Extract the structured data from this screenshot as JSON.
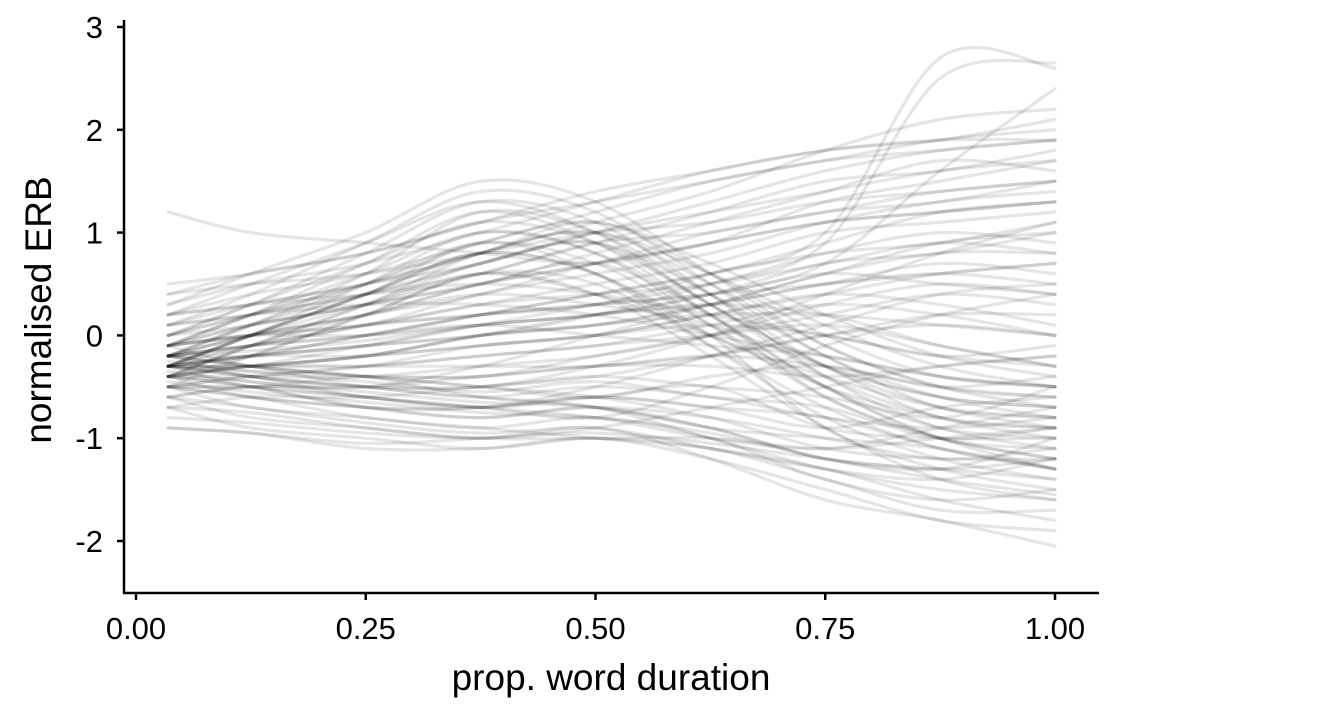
{
  "chart_data": {
    "type": "line",
    "title": "",
    "xlabel": "prop. word duration",
    "ylabel": "normalised ERB",
    "xlim": [
      0.0,
      1.0
    ],
    "ylim": [
      -2.5,
      3.0
    ],
    "x_ticks": [
      0.0,
      0.25,
      0.5,
      0.75,
      1.0
    ],
    "x_tick_labels": [
      "0.00",
      "0.25",
      "0.50",
      "0.75",
      "1.00"
    ],
    "y_ticks": [
      -2,
      -1,
      0,
      1,
      2,
      3
    ],
    "y_tick_labels": [
      "-2",
      "-1",
      "0",
      "1",
      "2",
      "3"
    ],
    "grid": false,
    "legend": "none",
    "line_color": "#000000",
    "x": [
      0.035,
      0.125,
      0.25,
      0.375,
      0.5,
      0.625,
      0.75,
      0.875,
      1.0
    ],
    "series": [
      {
        "values": [
          -0.3,
          -0.4,
          -0.6,
          -0.7,
          -0.6,
          -0.5,
          -0.9,
          -1.0,
          -1.0
        ]
      },
      {
        "values": [
          -0.4,
          -0.5,
          -0.7,
          -0.8,
          -0.7,
          -0.9,
          -1.2,
          -1.3,
          -1.4
        ]
      },
      {
        "values": [
          -0.2,
          -0.3,
          -0.5,
          -0.6,
          -0.7,
          -1.0,
          -1.3,
          -1.5,
          -1.6
        ]
      },
      {
        "values": [
          -0.5,
          -0.6,
          -0.8,
          -0.9,
          -1.0,
          -1.1,
          -1.3,
          -1.6,
          -1.8
        ]
      },
      {
        "values": [
          -0.6,
          -0.8,
          -0.9,
          -1.0,
          -0.9,
          -1.2,
          -1.6,
          -1.8,
          -2.05
        ]
      },
      {
        "values": [
          -0.3,
          -0.4,
          -0.5,
          -0.6,
          -0.5,
          -0.6,
          -0.8,
          -0.9,
          -0.8
        ]
      },
      {
        "values": [
          -0.2,
          -0.3,
          -0.4,
          -0.5,
          -0.6,
          -0.8,
          -1.1,
          -1.2,
          -1.2
        ]
      },
      {
        "values": [
          -0.4,
          -0.6,
          -0.7,
          -0.8,
          -0.7,
          -0.8,
          -1.0,
          -1.2,
          -1.1
        ]
      },
      {
        "values": [
          -0.1,
          -0.3,
          -0.4,
          -0.6,
          -0.7,
          -0.9,
          -1.2,
          -1.3,
          -1.0
        ]
      },
      {
        "values": [
          -0.5,
          -0.7,
          -0.8,
          -0.9,
          -0.8,
          -1.0,
          -1.4,
          -1.6,
          -1.5
        ]
      },
      {
        "values": [
          -0.7,
          -0.9,
          -1.0,
          -1.1,
          -1.0,
          -1.1,
          -1.4,
          -1.7,
          -1.7
        ]
      },
      {
        "values": [
          -0.9,
          -0.95,
          -1.1,
          -1.1,
          -1.0,
          -1.2,
          -1.5,
          -1.8,
          -1.9
        ]
      },
      {
        "values": [
          -0.3,
          -0.5,
          -0.6,
          -0.7,
          -0.6,
          -0.7,
          -0.9,
          -0.7,
          -0.6
        ]
      },
      {
        "values": [
          -0.2,
          -0.4,
          -0.5,
          -0.5,
          -0.4,
          -0.5,
          -0.6,
          -0.8,
          -0.5
        ]
      },
      {
        "values": [
          -0.5,
          -0.6,
          -0.7,
          -0.7,
          -0.6,
          -0.7,
          -0.8,
          -1.1,
          -1.3
        ]
      },
      {
        "values": [
          -0.3,
          -0.35,
          -0.4,
          -0.5,
          -0.6,
          -0.4,
          -0.3,
          -0.5,
          -0.4
        ]
      },
      {
        "values": [
          -0.4,
          -0.45,
          -0.6,
          -0.7,
          -0.8,
          -1.0,
          -1.1,
          -0.9,
          -0.7
        ]
      },
      {
        "values": [
          -0.6,
          -0.7,
          -0.85,
          -0.95,
          -0.9,
          -1.1,
          -1.3,
          -1.4,
          -1.2
        ]
      },
      {
        "values": [
          -0.2,
          -0.3,
          -0.4,
          -0.4,
          -0.3,
          -0.3,
          -0.4,
          -0.3,
          -0.2
        ]
      },
      {
        "values": [
          -0.35,
          -0.45,
          -0.55,
          -0.65,
          -0.7,
          -0.9,
          -1.0,
          -1.1,
          -1.3
        ]
      },
      {
        "values": [
          -0.45,
          -0.55,
          -0.65,
          -0.75,
          -0.8,
          -0.95,
          -1.2,
          -1.4,
          -1.55
        ]
      },
      {
        "values": [
          -0.25,
          -0.35,
          -0.45,
          -0.55,
          -0.45,
          -0.6,
          -0.7,
          -1.0,
          -0.9
        ]
      },
      {
        "values": [
          -0.3,
          -0.2,
          0.0,
          0.2,
          0.4,
          0.6,
          0.9,
          1.2,
          1.3
        ]
      },
      {
        "values": [
          -0.2,
          0.0,
          0.2,
          0.5,
          0.7,
          1.0,
          1.2,
          1.4,
          1.5
        ]
      },
      {
        "values": [
          -0.1,
          0.1,
          0.3,
          0.6,
          0.9,
          1.2,
          1.5,
          1.6,
          1.8
        ]
      },
      {
        "values": [
          0.0,
          0.2,
          0.4,
          0.7,
          1.0,
          1.3,
          1.6,
          1.8,
          1.9
        ]
      },
      {
        "values": [
          0.2,
          0.4,
          0.6,
          0.9,
          1.2,
          1.5,
          1.7,
          1.9,
          2.0
        ]
      },
      {
        "values": [
          -0.3,
          -0.1,
          0.1,
          0.3,
          0.5,
          0.7,
          1.0,
          1.1,
          1.2
        ]
      },
      {
        "values": [
          -0.4,
          -0.3,
          -0.1,
          0.1,
          0.2,
          0.4,
          0.7,
          0.8,
          1.0
        ]
      },
      {
        "values": [
          0.1,
          0.3,
          0.5,
          0.8,
          1.1,
          1.4,
          1.8,
          2.1,
          2.2
        ]
      },
      {
        "values": [
          -0.2,
          -0.1,
          0.1,
          0.4,
          0.6,
          0.8,
          1.1,
          1.3,
          1.4
        ]
      },
      {
        "values": [
          -0.1,
          0.0,
          0.2,
          0.4,
          0.7,
          0.9,
          1.3,
          1.5,
          1.7
        ]
      },
      {
        "values": [
          0.3,
          0.5,
          0.7,
          1.0,
          1.3,
          1.6,
          1.8,
          1.9,
          2.1
        ]
      },
      {
        "values": [
          -0.5,
          -0.4,
          -0.3,
          -0.1,
          0.0,
          0.2,
          0.4,
          0.6,
          0.7
        ]
      },
      {
        "values": [
          0.0,
          0.1,
          0.3,
          0.5,
          0.8,
          1.1,
          1.4,
          1.7,
          1.6
        ]
      },
      {
        "values": [
          -0.3,
          -0.2,
          -0.1,
          0.1,
          0.3,
          0.5,
          0.8,
          1.0,
          0.9
        ]
      },
      {
        "values": [
          -0.2,
          -0.1,
          0.0,
          0.2,
          0.4,
          0.6,
          0.8,
          0.9,
          1.1
        ]
      },
      {
        "values": [
          0.4,
          0.6,
          0.8,
          1.1,
          1.4,
          1.6,
          1.8,
          1.9,
          1.9
        ]
      },
      {
        "values": [
          -0.1,
          0.1,
          0.3,
          0.5,
          0.7,
          0.9,
          1.1,
          1.2,
          1.3
        ]
      },
      {
        "values": [
          -0.4,
          -0.3,
          -0.2,
          0.0,
          0.2,
          0.3,
          0.5,
          0.6,
          0.5
        ]
      },
      {
        "values": [
          0.2,
          0.3,
          0.5,
          0.7,
          1.0,
          1.2,
          1.4,
          1.6,
          1.7
        ]
      },
      {
        "values": [
          0.1,
          0.2,
          0.4,
          0.6,
          0.9,
          1.0,
          1.2,
          1.3,
          1.5
        ]
      },
      {
        "values": [
          -0.3,
          -0.3,
          -0.2,
          0.0,
          0.1,
          0.3,
          0.6,
          0.8,
          0.8
        ]
      },
      {
        "values": [
          -0.2,
          -0.15,
          -0.05,
          0.1,
          0.2,
          0.4,
          0.7,
          1.6,
          2.4
        ]
      },
      {
        "values": [
          -0.3,
          -0.2,
          -0.1,
          0.0,
          0.2,
          0.5,
          0.9,
          2.5,
          2.65
        ]
      },
      {
        "values": [
          -0.1,
          0.0,
          0.1,
          0.2,
          0.3,
          0.6,
          1.0,
          2.7,
          2.6
        ]
      },
      {
        "values": [
          -0.3,
          0.0,
          0.4,
          0.8,
          0.6,
          0.0,
          -0.4,
          -0.7,
          -0.8
        ]
      },
      {
        "values": [
          -0.2,
          0.1,
          0.5,
          0.9,
          0.7,
          0.1,
          -0.5,
          -0.9,
          -1.0
        ]
      },
      {
        "values": [
          -0.4,
          -0.1,
          0.3,
          0.7,
          0.9,
          0.3,
          -0.3,
          -0.6,
          -0.7
        ]
      },
      {
        "values": [
          -0.1,
          0.2,
          0.6,
          1.0,
          0.8,
          0.2,
          -0.6,
          -1.0,
          -1.2
        ]
      },
      {
        "values": [
          0.0,
          0.3,
          0.7,
          1.1,
          0.9,
          0.3,
          -0.4,
          -0.8,
          -1.0
        ]
      },
      {
        "values": [
          -0.3,
          0.0,
          0.4,
          0.8,
          1.0,
          0.5,
          -0.1,
          -0.5,
          -0.6
        ]
      },
      {
        "values": [
          -0.5,
          -0.2,
          0.2,
          0.6,
          0.5,
          -0.1,
          -0.7,
          -1.1,
          -1.3
        ]
      },
      {
        "values": [
          -0.2,
          0.1,
          0.6,
          1.2,
          1.0,
          0.4,
          -0.3,
          -0.7,
          -0.9
        ]
      },
      {
        "values": [
          0.1,
          0.4,
          0.9,
          1.4,
          1.2,
          0.5,
          -0.2,
          -0.6,
          -0.8
        ]
      },
      {
        "values": [
          -0.4,
          -0.1,
          0.2,
          0.5,
          0.7,
          0.2,
          -0.5,
          -1.0,
          -1.1
        ]
      },
      {
        "values": [
          -0.3,
          0.0,
          0.4,
          0.9,
          0.6,
          -0.1,
          -0.8,
          -1.2,
          -1.4
        ]
      },
      {
        "values": [
          -0.1,
          0.2,
          0.5,
          0.8,
          1.1,
          0.6,
          0.0,
          -0.4,
          -0.5
        ]
      },
      {
        "values": [
          -0.2,
          0.0,
          0.3,
          0.6,
          0.4,
          0.0,
          -0.5,
          -0.8,
          -0.9
        ]
      },
      {
        "values": [
          0.0,
          0.3,
          0.8,
          1.3,
          1.1,
          0.4,
          -0.4,
          -0.9,
          -1.1
        ]
      },
      {
        "values": [
          -0.3,
          0.0,
          0.5,
          1.0,
          0.8,
          0.1,
          -0.6,
          -1.0,
          -1.2
        ]
      },
      {
        "values": [
          0.2,
          0.5,
          0.9,
          1.3,
          1.0,
          0.3,
          -0.3,
          -0.8,
          -0.9
        ]
      },
      {
        "values": [
          -0.4,
          -0.1,
          0.3,
          0.8,
          1.0,
          0.6,
          0.1,
          -0.3,
          -0.5
        ]
      },
      {
        "values": [
          -0.3,
          0.0,
          0.4,
          0.8,
          0.6,
          0.0,
          -0.9,
          -1.3,
          -1.5
        ]
      },
      {
        "values": [
          -0.1,
          0.2,
          0.7,
          1.2,
          0.9,
          0.2,
          -0.5,
          -1.0,
          -1.3
        ]
      },
      {
        "values": [
          0.3,
          0.6,
          1.0,
          1.5,
          1.3,
          0.6,
          -0.1,
          -0.5,
          -0.7
        ]
      },
      {
        "values": [
          -0.2,
          0.1,
          0.4,
          0.7,
          0.9,
          0.4,
          -0.2,
          -0.7,
          -0.8
        ]
      },
      {
        "values": [
          -0.4,
          -0.2,
          0.2,
          0.6,
          0.4,
          -0.2,
          -0.9,
          -1.4,
          -1.6
        ]
      },
      {
        "values": [
          0.0,
          0.2,
          0.5,
          0.9,
          1.1,
          0.7,
          0.2,
          -0.2,
          -0.4
        ]
      },
      {
        "values": [
          -0.2,
          0.0,
          0.2,
          0.4,
          0.3,
          0.1,
          -0.3,
          -0.6,
          -0.7
        ]
      },
      {
        "values": [
          -0.3,
          -0.2,
          0.0,
          0.2,
          0.3,
          0.4,
          0.5,
          0.6,
          0.7
        ]
      },
      {
        "values": [
          -0.2,
          -0.1,
          0.1,
          0.2,
          0.3,
          0.4,
          0.6,
          0.5,
          0.4
        ]
      },
      {
        "values": [
          -0.4,
          -0.3,
          -0.2,
          0.0,
          0.1,
          0.2,
          0.2,
          0.1,
          0.0
        ]
      },
      {
        "values": [
          -0.1,
          0.0,
          0.1,
          0.3,
          0.4,
          0.5,
          0.7,
          0.9,
          0.8
        ]
      },
      {
        "values": [
          -0.3,
          -0.3,
          -0.2,
          -0.1,
          0.0,
          0.2,
          0.4,
          0.3,
          0.1
        ]
      },
      {
        "values": [
          -0.5,
          -0.4,
          -0.3,
          -0.2,
          -0.1,
          0.0,
          0.1,
          -0.1,
          -0.3
        ]
      },
      {
        "values": [
          -0.2,
          -0.2,
          -0.1,
          0.0,
          0.1,
          0.3,
          0.5,
          0.7,
          0.6
        ]
      },
      {
        "values": [
          -0.3,
          -0.3,
          -0.3,
          -0.2,
          -0.1,
          0.1,
          0.3,
          0.2,
          0.0
        ]
      },
      {
        "values": [
          -0.6,
          -0.5,
          -0.5,
          -0.4,
          -0.3,
          -0.2,
          0.0,
          0.2,
          0.2
        ]
      },
      {
        "values": [
          -0.1,
          0.0,
          0.0,
          0.1,
          0.2,
          0.3,
          0.2,
          -0.1,
          -0.3
        ]
      },
      {
        "values": [
          -0.4,
          -0.4,
          -0.4,
          -0.3,
          -0.2,
          0.0,
          0.3,
          0.5,
          0.4
        ]
      },
      {
        "values": [
          -0.2,
          -0.1,
          0.0,
          0.1,
          0.0,
          -0.1,
          -0.2,
          -0.4,
          -0.5
        ]
      },
      {
        "values": [
          -0.3,
          -0.2,
          -0.2,
          -0.1,
          0.0,
          0.1,
          0.0,
          -0.2,
          -0.1
        ]
      },
      {
        "values": [
          -0.5,
          -0.5,
          -0.4,
          -0.4,
          -0.2,
          0.0,
          0.2,
          0.4,
          0.3
        ]
      },
      {
        "values": [
          -0.7,
          -0.6,
          -0.6,
          -0.5,
          -0.4,
          -0.2,
          0.0,
          0.1,
          0.0
        ]
      },
      {
        "values": [
          -0.4,
          -0.3,
          -0.3,
          -0.3,
          -0.3,
          -0.2,
          -0.3,
          -0.5,
          -0.6
        ]
      },
      {
        "values": [
          1.2,
          1.0,
          0.9,
          0.8,
          0.7,
          0.9,
          1.1,
          1.2,
          1.3
        ]
      },
      {
        "values": [
          0.5,
          0.6,
          0.8,
          1.1,
          1.3,
          1.5,
          1.7,
          1.8,
          1.9
        ]
      },
      {
        "values": [
          0.4,
          0.5,
          0.6,
          0.8,
          1.0,
          1.1,
          1.3,
          1.4,
          1.5
        ]
      },
      {
        "values": [
          -0.9,
          -0.95,
          -1.05,
          -1.0,
          -0.9,
          -0.7,
          -0.5,
          -0.3,
          -0.2
        ]
      },
      {
        "values": [
          -0.8,
          -0.85,
          -0.95,
          -1.0,
          -0.95,
          -1.05,
          -1.2,
          -1.3,
          -1.2
        ]
      },
      {
        "values": [
          -0.7,
          -0.75,
          -0.9,
          -1.0,
          -1.0,
          -1.0,
          -1.1,
          -1.0,
          -0.9
        ]
      },
      {
        "values": [
          0.2,
          0.3,
          0.4,
          0.5,
          0.4,
          0.2,
          0.0,
          -0.2,
          -0.3
        ]
      },
      {
        "values": [
          0.1,
          0.2,
          0.3,
          0.3,
          0.2,
          0.0,
          -0.2,
          -0.4,
          -0.5
        ]
      },
      {
        "values": [
          -0.6,
          -0.5,
          -0.5,
          -0.3,
          0.0,
          0.3,
          0.6,
          0.9,
          1.0
        ]
      },
      {
        "values": [
          -0.5,
          -0.5,
          -0.6,
          -0.7,
          -0.8,
          -0.5,
          -0.1,
          0.2,
          0.4
        ]
      },
      {
        "values": [
          -0.3,
          -0.4,
          -0.5,
          -0.5,
          -0.3,
          0.0,
          0.4,
          0.8,
          1.1
        ]
      },
      {
        "values": [
          -0.4,
          -0.5,
          -0.7,
          -0.7,
          -0.5,
          -0.2,
          0.1,
          0.4,
          0.5
        ]
      }
    ]
  }
}
